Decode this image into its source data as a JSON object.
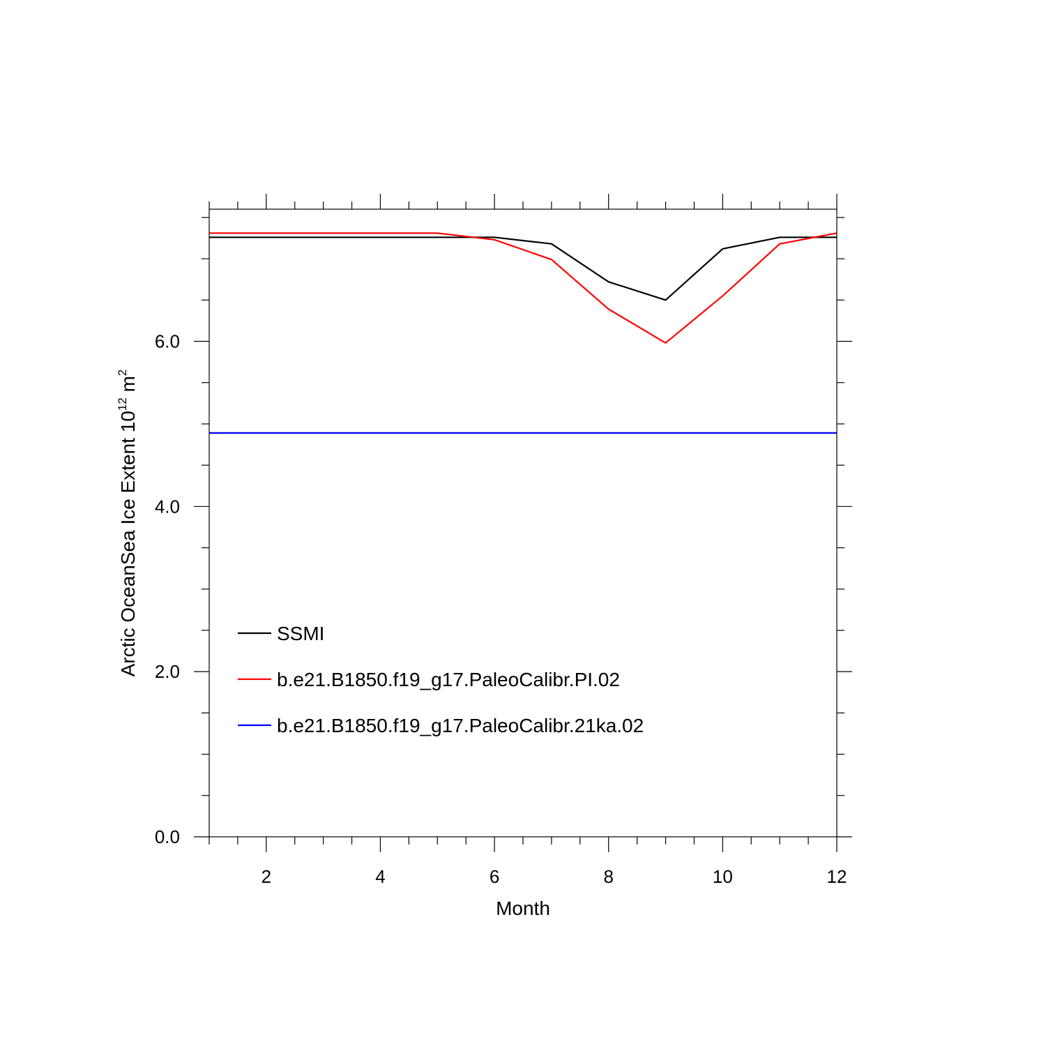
{
  "chart_data": {
    "type": "line",
    "xlabel": "Month",
    "ylabel": {
      "text": "Arctic OceanSea Ice Extent 10",
      "superscript1": "12",
      "unit": " m",
      "superscript2": "2"
    },
    "xlim": [
      1,
      12
    ],
    "ylim": [
      0,
      7.6
    ],
    "x_ticks": [
      2,
      4,
      6,
      8,
      10,
      12
    ],
    "x_tick_labels": [
      "2",
      "4",
      "6",
      "8",
      "10",
      "12"
    ],
    "y_ticks": [
      0,
      2,
      4,
      6
    ],
    "y_tick_labels": [
      "0.0",
      "2.0",
      "4.0",
      "6.0"
    ],
    "grid": false,
    "legend_position": "lower-left",
    "x": [
      1,
      2,
      3,
      4,
      5,
      6,
      7,
      8,
      9,
      10,
      11,
      12
    ],
    "series": [
      {
        "name": "SSMI",
        "color": "#000000",
        "values": [
          7.26,
          7.26,
          7.26,
          7.26,
          7.26,
          7.26,
          7.18,
          6.72,
          6.5,
          7.12,
          7.26,
          7.26
        ]
      },
      {
        "name": "b.e21.B1850.f19_g17.PaleoCalibr.PI.02",
        "color": "#ff0000",
        "values": [
          7.31,
          7.31,
          7.31,
          7.31,
          7.31,
          7.23,
          6.99,
          6.39,
          5.98,
          6.55,
          7.18,
          7.31
        ]
      },
      {
        "name": "b.e21.B1850.f19_g17.PaleoCalibr.21ka.02",
        "color": "#0000ff",
        "values": [
          4.89,
          4.89,
          4.89,
          4.89,
          4.89,
          4.89,
          4.89,
          4.89,
          4.89,
          4.89,
          4.89,
          4.89
        ]
      }
    ]
  }
}
